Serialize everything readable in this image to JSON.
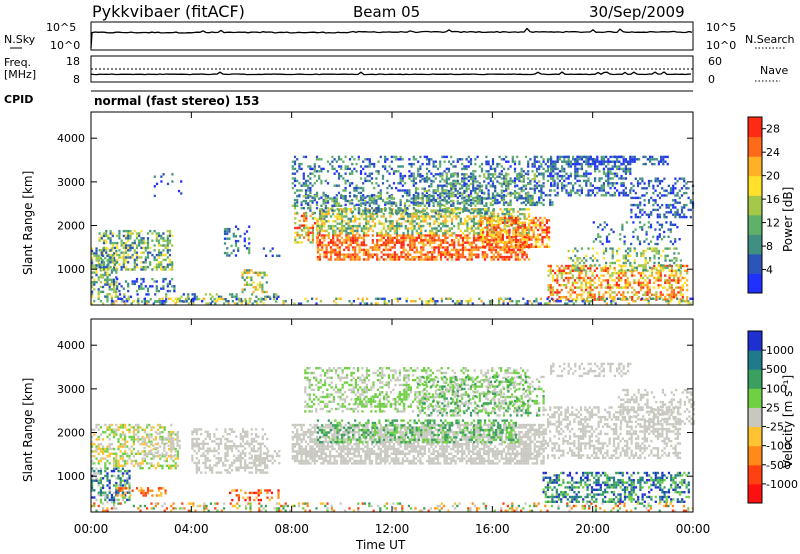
{
  "header": {
    "title": "Pykkvibaer (fitACF)",
    "beam": "Beam 05",
    "date": "30/Sep/2009"
  },
  "top_panels": {
    "nsky_label": "N.Sky",
    "nsearch_label": "N.Search",
    "nsky_ticks": [
      "10^5",
      "10^0"
    ],
    "nsearch_ticks": [
      "10^5",
      "10^0"
    ],
    "freq_label_1": "Freq.",
    "freq_label_2": "[MHz]",
    "freq_ticks": [
      "18",
      "8"
    ],
    "nave_label": "Nave",
    "nave_ticks": [
      "60",
      "0"
    ],
    "cpid_label": "CPID",
    "cpid_value": "normal (fast stereo) 153"
  },
  "chart_data": [
    {
      "type": "heatmap",
      "title": "",
      "xlabel": "Time UT",
      "ylabel": "Slant Range [km]",
      "x_ticks": [
        "00:00",
        "04:00",
        "08:00",
        "12:00",
        "16:00",
        "20:00",
        "00:00"
      ],
      "xlim_hours": [
        0,
        24
      ],
      "y_ticks": [
        1000,
        2000,
        3000,
        4000
      ],
      "ylim_km": [
        180,
        4600
      ],
      "colorbar_label": "Power [dB]",
      "colorbar_ticks": [
        4,
        8,
        12,
        16,
        20,
        24,
        28
      ],
      "colorbar_range": [
        0,
        30
      ],
      "colors": [
        "#2030ff",
        "#2b55b8",
        "#3f8f82",
        "#5fb06a",
        "#a6c84a",
        "#ffe12a",
        "#ffb024",
        "#ff6a1a",
        "#ff2a14"
      ]
    },
    {
      "type": "heatmap",
      "title": "",
      "xlabel": "Time UT",
      "ylabel": "Slant Range [km]",
      "x_ticks": [
        "00:00",
        "04:00",
        "08:00",
        "12:00",
        "16:00",
        "20:00",
        "00:00"
      ],
      "xlim_hours": [
        0,
        24
      ],
      "y_ticks": [
        1000,
        2000,
        3000,
        4000
      ],
      "ylim_km": [
        180,
        4600
      ],
      "colorbar_label": "Velocity [m s⁻¹]",
      "colorbar_ticks": [
        "1000",
        "500",
        "100",
        "25",
        "-25",
        "-100",
        "-500",
        "-1000"
      ],
      "colors": [
        "#2030d0",
        "#1f7a8c",
        "#3aa060",
        "#6fd044",
        "#c8c8c0",
        "#ffc230",
        "#ff8a18",
        "#ff4010",
        "#ff1010"
      ]
    }
  ]
}
